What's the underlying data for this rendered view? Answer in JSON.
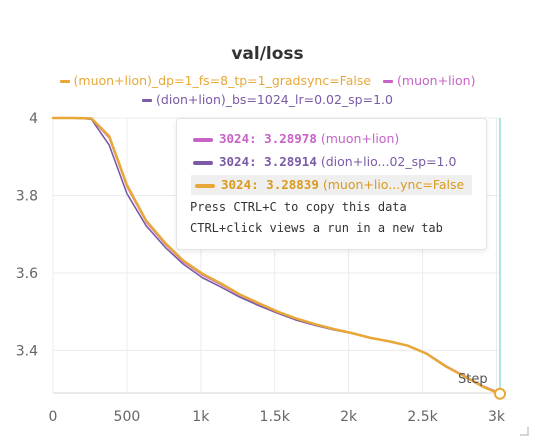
{
  "chart_data": {
    "type": "line",
    "title": "val/loss",
    "xlabel": "Step",
    "ylabel": "",
    "xlim": [
      0,
      3000
    ],
    "ylim": [
      3.29,
      4.0
    ],
    "x_ticks": [
      "0",
      "500",
      "1k",
      "1.5k",
      "2k",
      "2.5k",
      "3k"
    ],
    "y_ticks": [
      "3.4",
      "3.6",
      "3.8",
      "4"
    ],
    "grid": true,
    "legend_position": "top",
    "series": [
      {
        "name": "(muon+lion)_dp=1_fs=8_tp=1_gradsync=False",
        "color": "#e8a838",
        "x": [
          0,
          130,
          260,
          380,
          500,
          630,
          760,
          880,
          1010,
          1140,
          1260,
          1390,
          1520,
          1640,
          1770,
          1900,
          2020,
          2150,
          2280,
          2400,
          2530,
          2660,
          2780,
          2910,
          3024
        ],
        "values": [
          4.0,
          4.0,
          3.999,
          3.953,
          3.827,
          3.735,
          3.677,
          3.632,
          3.598,
          3.572,
          3.545,
          3.522,
          3.5,
          3.483,
          3.468,
          3.455,
          3.445,
          3.432,
          3.423,
          3.412,
          3.391,
          3.358,
          3.334,
          3.306,
          3.288
        ]
      },
      {
        "name": "(muon+lion)",
        "color": "#c762c7",
        "x": [
          0,
          130,
          260,
          380,
          500,
          630,
          760,
          880,
          1010,
          1140,
          1260,
          1390,
          1520,
          1640,
          1770,
          1900,
          2020,
          2150,
          2280,
          2400,
          2530,
          2660,
          2780,
          2910,
          3024
        ],
        "values": [
          4.0,
          4.0,
          3.998,
          3.949,
          3.823,
          3.732,
          3.674,
          3.629,
          3.595,
          3.569,
          3.543,
          3.52,
          3.499,
          3.482,
          3.467,
          3.455,
          3.445,
          3.433,
          3.423,
          3.413,
          3.392,
          3.36,
          3.335,
          3.308,
          3.29
        ]
      },
      {
        "name": "(dion+lion)_bs=1024_lr=0.02_sp=1.0",
        "color": "#7b5aa6",
        "x": [
          0,
          130,
          260,
          380,
          500,
          630,
          760,
          880,
          1010,
          1140,
          1260,
          1390,
          1520,
          1640,
          1770,
          1900,
          2020,
          2150,
          2280,
          2400,
          2530,
          2660,
          2780,
          2910,
          3024
        ],
        "values": [
          4.0,
          4.0,
          3.997,
          3.93,
          3.805,
          3.722,
          3.666,
          3.623,
          3.588,
          3.563,
          3.538,
          3.516,
          3.496,
          3.479,
          3.465,
          3.453,
          3.444,
          3.432,
          3.422,
          3.412,
          3.391,
          3.359,
          3.334,
          3.307,
          3.289
        ]
      }
    ],
    "legend": [
      {
        "name": "(muon+lion)_dp=1_fs=8_tp=1_gradsync=False",
        "color": "#e8a838"
      },
      {
        "name": "(muon+lion)",
        "color": "#c762c7"
      },
      {
        "name": "(dion+lion)_bs=1024_lr=0.02_sp=1.0",
        "color": "#7b5aa6"
      }
    ],
    "hover_step": 3024
  },
  "tooltip": {
    "rows": [
      {
        "step": "3024",
        "value": "3.28978",
        "name": "(muon+lion)",
        "color": "#c762c7",
        "highlight": false
      },
      {
        "step": "3024",
        "value": "3.28914",
        "name": "(dion+lio...02_sp=1.0",
        "color": "#7b5aa6",
        "highlight": false
      },
      {
        "step": "3024",
        "value": "3.28839",
        "name": "(muon+lio...ync=False",
        "color": "#e8a838",
        "highlight": true
      }
    ],
    "note1": "Press CTRL+C to copy this data",
    "note2": "CTRL+click views a run in a new tab"
  }
}
